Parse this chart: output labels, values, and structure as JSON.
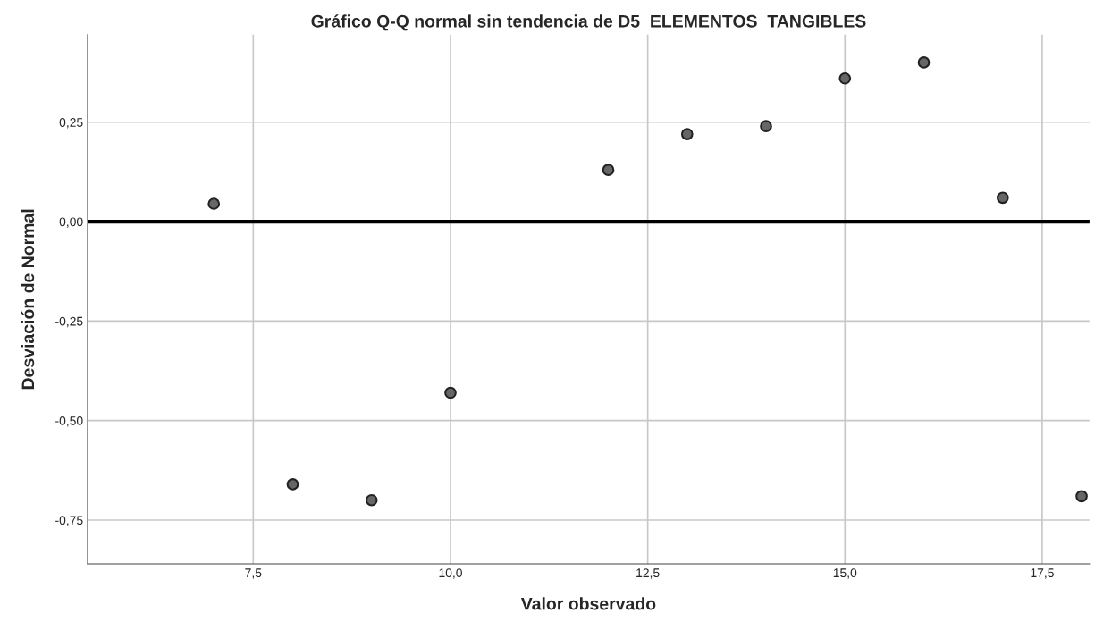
{
  "chart_data": {
    "type": "scatter",
    "title": "Gráfico Q-Q normal sin tendencia de D5_ELEMENTOS_TANGIBLES",
    "xlabel": "Valor observado",
    "ylabel": "Desviación de Normal",
    "x": [
      7,
      8,
      9,
      10,
      12,
      13,
      14,
      15,
      16,
      17,
      18
    ],
    "series": [
      {
        "color": "#666666",
        "values": [
          0.045,
          -0.66,
          -0.7,
          -0.43,
          0.13,
          0.22,
          0.24,
          0.36,
          0.4,
          0.06,
          -0.69
        ]
      }
    ],
    "xlim": [
      5.4,
      18.1
    ],
    "xticks": [
      {
        "value": 7.5,
        "label": "7,5"
      },
      {
        "value": 10,
        "label": "10,0"
      },
      {
        "value": 12.5,
        "label": "12,5"
      },
      {
        "value": 15,
        "label": "15,0"
      },
      {
        "value": 17.5,
        "label": "17,5"
      }
    ],
    "ylim": [
      -0.86,
      0.47
    ],
    "yticks": [
      {
        "value": -0.75,
        "label": "-0,75"
      },
      {
        "value": -0.5,
        "label": "-0,50"
      },
      {
        "value": -0.25,
        "label": "-0,25"
      },
      {
        "value": 0,
        "label": "0,00"
      },
      {
        "value": 0.25,
        "label": "0,25"
      }
    ],
    "ref_lines": [
      {
        "axis": "y",
        "value": 0,
        "color": "#000000"
      }
    ],
    "grid": true,
    "marker": "circle"
  }
}
